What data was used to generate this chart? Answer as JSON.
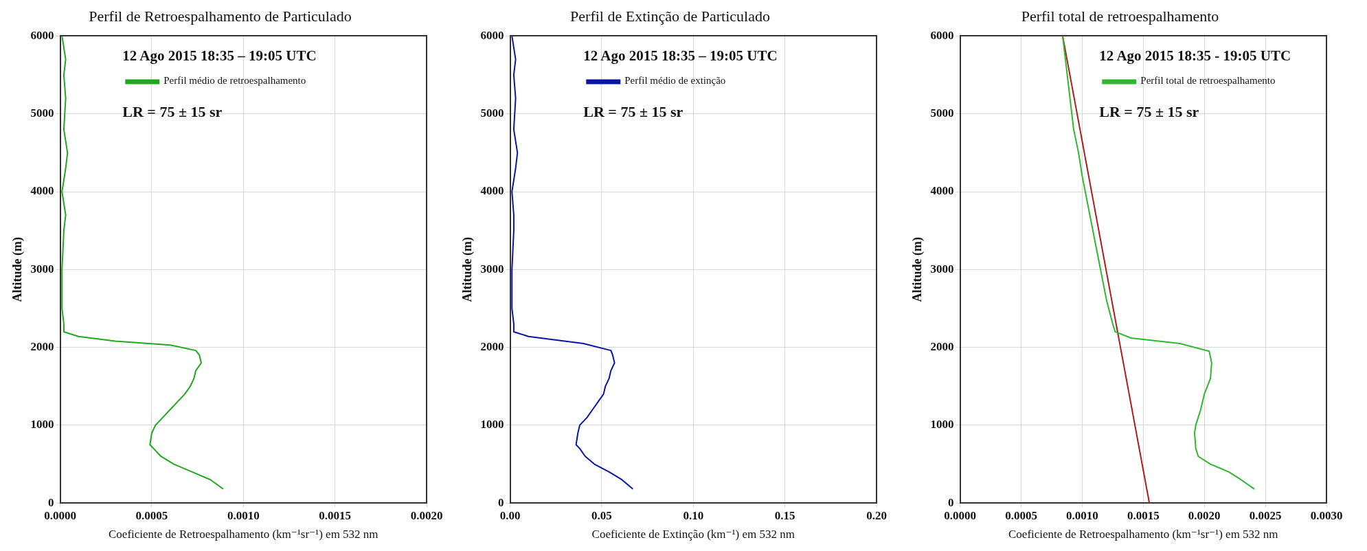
{
  "chart_data": [
    {
      "type": "line",
      "title": "Perfil de Retroespalhamento de Particulado",
      "xlabel": "Coeficiente de Retroespalhamento (km⁻¹sr⁻¹) em 532 nm",
      "ylabel": "Altitude (m)",
      "annotations": [
        "12 Ago 2015 18:35 – 19:05 UTC",
        "LR = 75 ± 15 sr"
      ],
      "xlim": [
        0,
        0.002
      ],
      "xticks": [
        {
          "value": 0,
          "label": "0.0000"
        },
        {
          "value": 0.0005,
          "label": "0.0005"
        },
        {
          "value": 0.001,
          "label": "0.0010"
        },
        {
          "value": 0.0015,
          "label": "0.0015"
        },
        {
          "value": 0.002,
          "label": "0.0020"
        }
      ],
      "ylim": [
        0,
        6000
      ],
      "yticks": [
        0,
        1000,
        2000,
        3000,
        4000,
        5000,
        6000
      ],
      "grid": true,
      "legend": "top",
      "line_style": "solid",
      "marker": "none",
      "series": [
        {
          "name": "Perfil médio de retroespalhamento",
          "color": "#1fa81f",
          "x": [
            0.00089,
            0.00082,
            0.00072,
            0.00062,
            0.00055,
            0.00051,
            0.00049,
            0.0005,
            0.00052,
            0.00056,
            0.0006,
            0.00064,
            0.00068,
            0.00071,
            0.00073,
            0.00074,
            0.00077,
            0.00076,
            0.00074,
            0.0006,
            0.0003,
            0.0001,
            2e-05,
            2e-05,
            1e-05,
            1e-05,
            2e-05,
            3e-05,
            1e-05,
            3e-05,
            4e-05,
            2e-05,
            3e-05,
            2e-05,
            3e-05,
            1e-05
          ],
          "values": [
            180,
            300,
            400,
            500,
            600,
            700,
            750,
            900,
            1000,
            1100,
            1200,
            1300,
            1400,
            1500,
            1600,
            1700,
            1800,
            1900,
            1960,
            2030,
            2080,
            2140,
            2200,
            2300,
            2500,
            3000,
            3500,
            3700,
            4000,
            4300,
            4500,
            4800,
            5200,
            5500,
            5700,
            6000
          ]
        }
      ]
    },
    {
      "type": "line",
      "title": "Perfil de Extinção de Particulado",
      "xlabel": "Coeficiente de Extinção (km⁻¹) em 532 nm",
      "ylabel": "Altitude (m)",
      "annotations": [
        "12 Ago 2015 18:35 – 19:05 UTC",
        "LR = 75 ± 15 sr"
      ],
      "xlim": [
        0,
        0.2
      ],
      "xticks": [
        {
          "value": 0,
          "label": "0.00"
        },
        {
          "value": 0.05,
          "label": "0.05"
        },
        {
          "value": 0.1,
          "label": "0.10"
        },
        {
          "value": 0.15,
          "label": "0.15"
        },
        {
          "value": 0.2,
          "label": "0.20"
        }
      ],
      "ylim": [
        0,
        6000
      ],
      "yticks": [
        0,
        1000,
        2000,
        3000,
        4000,
        5000,
        6000
      ],
      "grid": true,
      "legend": "top",
      "line_style": "solid",
      "marker": "none",
      "series": [
        {
          "name": "Perfil médio de extinção",
          "color": "#0a14a8",
          "x": [
            0.067,
            0.061,
            0.054,
            0.046,
            0.041,
            0.038,
            0.036,
            0.037,
            0.038,
            0.042,
            0.045,
            0.048,
            0.051,
            0.052,
            0.054,
            0.055,
            0.057,
            0.056,
            0.055,
            0.04,
            0.01,
            0.002,
            0.002,
            0.001,
            0.001,
            0.002,
            0.002,
            0.001,
            0.003,
            0.004,
            0.002,
            0.003,
            0.002,
            0.003,
            0.001
          ],
          "values": [
            180,
            300,
            400,
            500,
            600,
            700,
            750,
            900,
            1000,
            1100,
            1200,
            1300,
            1400,
            1500,
            1600,
            1700,
            1800,
            1900,
            1960,
            2050,
            2140,
            2200,
            2300,
            2500,
            3000,
            3500,
            3700,
            4000,
            4300,
            4500,
            4800,
            5200,
            5500,
            5700,
            6000
          ]
        }
      ]
    },
    {
      "type": "line",
      "title": "Perfil total de retroespalhamento",
      "xlabel": "Coeficiente de Retroespalhamento (km⁻¹sr⁻¹) em 532 nm",
      "ylabel": "Altitude (m)",
      "annotations": [
        "12 Ago 2015 18:35 - 19:05 UTC",
        "LR = 75 ± 15 sr"
      ],
      "xlim": [
        0,
        0.003
      ],
      "xticks": [
        {
          "value": 0,
          "label": "0.0000"
        },
        {
          "value": 0.0005,
          "label": "0.0005"
        },
        {
          "value": 0.001,
          "label": "0.0010"
        },
        {
          "value": 0.0015,
          "label": "0.0015"
        },
        {
          "value": 0.002,
          "label": "0.0020"
        },
        {
          "value": 0.0025,
          "label": "0.0025"
        },
        {
          "value": 0.003,
          "label": "0.0030"
        }
      ],
      "ylim": [
        0,
        6000
      ],
      "yticks": [
        0,
        1000,
        2000,
        3000,
        4000,
        5000,
        6000
      ],
      "grid": true,
      "legend": "top right",
      "line_style": "solid",
      "marker": "none",
      "series": [
        {
          "name": "Perfil total de retroespalhamento",
          "color": "#2db82d",
          "x": [
            0.00241,
            0.0023,
            0.0022,
            0.00205,
            0.00195,
            0.00193,
            0.00192,
            0.00193,
            0.00197,
            0.002,
            0.00205,
            0.00206,
            0.00204,
            0.0018,
            0.0014,
            0.00127,
            0.00125,
            0.0012,
            0.00115,
            0.0011,
            0.00105,
            0.001,
            0.00097,
            0.00093,
            0.0009,
            0.00087,
            0.00084
          ],
          "values": [
            180,
            300,
            400,
            500,
            600,
            700,
            900,
            1000,
            1200,
            1400,
            1600,
            1800,
            1950,
            2050,
            2120,
            2200,
            2300,
            2600,
            3000,
            3400,
            3800,
            4200,
            4500,
            4800,
            5200,
            5600,
            6000
          ]
        },
        {
          "type": "line",
          "color": "#b01c1c",
          "x": [
            0.00155,
            0.00084
          ],
          "values": [
            0,
            6000
          ]
        }
      ]
    }
  ]
}
